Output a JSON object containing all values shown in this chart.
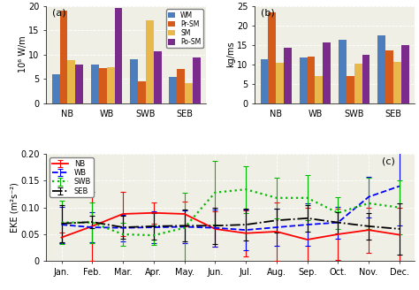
{
  "panel_a": {
    "categories": [
      "NB",
      "WB",
      "SWB",
      "SEB"
    ],
    "WM": [
      6.0,
      7.9,
      9.0,
      5.4
    ],
    "Pr_SM": [
      19.0,
      7.2,
      4.5,
      7.0
    ],
    "SM": [
      8.8,
      7.4,
      17.0,
      4.1
    ],
    "Po_SM": [
      8.0,
      19.5,
      10.7,
      9.4
    ],
    "ylabel": "10⁶ W/m",
    "ylim": [
      0,
      20
    ],
    "yticks": [
      0,
      5,
      10,
      15,
      20
    ],
    "label": "(a)"
  },
  "panel_b": {
    "categories": [
      "NB",
      "WB",
      "SWB",
      "SEB"
    ],
    "WM": [
      11.2,
      11.8,
      16.3,
      17.3
    ],
    "Pr_SM": [
      23.2,
      12.0,
      7.0,
      13.5
    ],
    "SM": [
      10.4,
      7.0,
      10.1,
      10.6
    ],
    "Po_SM": [
      14.3,
      15.5,
      12.5,
      15.0
    ],
    "ylabel": "kg/ms",
    "ylim": [
      0,
      25
    ],
    "yticks": [
      0,
      5,
      10,
      15,
      20,
      25
    ],
    "label": "(b)"
  },
  "panel_c": {
    "months": [
      "Jan.",
      "Feb.",
      "Mar.",
      "Apr.",
      "May.",
      "Jun.",
      "Jul.",
      "Aug.",
      "Sep.",
      "Oct.",
      "Nov.",
      "Dec."
    ],
    "NB": [
      0.044,
      0.065,
      0.088,
      0.09,
      0.088,
      0.06,
      0.052,
      0.055,
      0.04,
      0.05,
      0.058,
      0.049
    ],
    "WB": [
      0.068,
      0.063,
      0.062,
      0.063,
      0.064,
      0.062,
      0.058,
      0.063,
      0.068,
      0.072,
      0.12,
      0.14
    ],
    "SWB": [
      0.072,
      0.072,
      0.05,
      0.048,
      0.062,
      0.128,
      0.134,
      0.118,
      0.118,
      0.09,
      0.108,
      0.1
    ],
    "SEB": [
      0.07,
      0.073,
      0.063,
      0.065,
      0.066,
      0.066,
      0.068,
      0.076,
      0.08,
      0.072,
      0.065,
      0.06
    ],
    "NB_err": [
      0.01,
      0.065,
      0.042,
      0.02,
      0.023,
      0.033,
      0.043,
      0.055,
      0.06,
      0.048,
      0.042,
      0.05
    ],
    "WB_err": [
      0.034,
      0.028,
      0.025,
      0.03,
      0.03,
      0.035,
      0.038,
      0.035,
      0.04,
      0.03,
      0.038,
      0.074
    ],
    "SWB_err": [
      0.04,
      0.038,
      0.022,
      0.018,
      0.065,
      0.06,
      0.044,
      0.038,
      0.042,
      0.03,
      0.048,
      0.05
    ],
    "SEB_err": [
      0.035,
      0.012,
      0.022,
      0.025,
      0.03,
      0.034,
      0.03,
      0.022,
      0.025,
      0.02,
      0.025,
      0.048
    ],
    "ylabel": "EKE (m²s⁻²)",
    "ylim": [
      0,
      0.2
    ],
    "yticks": [
      0,
      0.05,
      0.1,
      0.15,
      0.2
    ],
    "label": "(c)"
  },
  "colors": {
    "WM": "#4C7EBE",
    "Pr_SM": "#D45B1A",
    "SM": "#E8B84B",
    "Po_SM": "#7B2B8B",
    "NB": "#FF0000",
    "WB": "#0000FF",
    "SWB": "#00BB00",
    "SEB": "#000000"
  },
  "bg_color": "#F0EFE5"
}
